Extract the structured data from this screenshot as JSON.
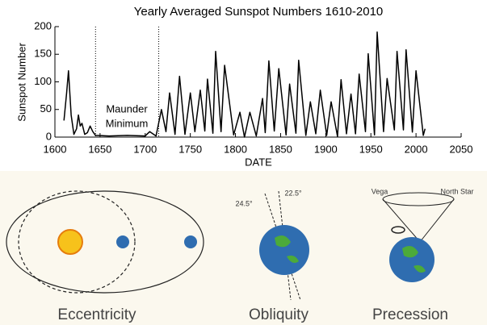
{
  "chart_data": {
    "type": "line",
    "title": "Yearly Averaged Sunspot Numbers 1610-2010",
    "xlabel": "DATE",
    "ylabel": "Sunspot Number",
    "annotation": [
      "Maunder",
      "Minimum"
    ],
    "vlines": [
      1645,
      1715
    ],
    "x": [
      1610,
      1613,
      1615,
      1618,
      1621,
      1624,
      1626,
      1628,
      1630,
      1633,
      1636,
      1639,
      1642,
      1645,
      1660,
      1680,
      1700,
      1705,
      1712,
      1718,
      1723,
      1727,
      1733,
      1738,
      1744,
      1750,
      1755,
      1761,
      1766,
      1769,
      1775,
      1778,
      1784,
      1788,
      1798,
      1805,
      1810,
      1816,
      1823,
      1830,
      1833,
      1837,
      1843,
      1848,
      1856,
      1860,
      1867,
      1870,
      1878,
      1883,
      1889,
      1894,
      1901,
      1906,
      1913,
      1917,
      1923,
      1928,
      1933,
      1937,
      1944,
      1947,
      1954,
      1957,
      1964,
      1968,
      1976,
      1979,
      1986,
      1989,
      1996,
      2000,
      2008,
      2010
    ],
    "values": [
      30,
      80,
      120,
      40,
      5,
      15,
      40,
      20,
      25,
      5,
      8,
      20,
      10,
      3,
      2,
      3,
      2,
      10,
      2,
      50,
      10,
      80,
      5,
      110,
      5,
      80,
      10,
      85,
      11,
      105,
      7,
      155,
      10,
      130,
      4,
      45,
      0,
      45,
      2,
      70,
      8,
      138,
      11,
      124,
      4,
      96,
      7,
      139,
      3,
      64,
      6,
      85,
      3,
      64,
      1,
      104,
      6,
      78,
      6,
      114,
      10,
      151,
      4,
      190,
      10,
      106,
      13,
      155,
      13,
      158,
      9,
      120,
      3,
      15
    ],
    "color": "#000000",
    "xlim": [
      1600,
      2050
    ],
    "xticks": [
      1600,
      1650,
      1700,
      1750,
      1800,
      1850,
      1900,
      1950,
      2000,
      2050
    ],
    "ylim": [
      0,
      200
    ],
    "yticks": [
      0,
      50,
      100,
      150,
      200
    ],
    "grid": false
  },
  "diagram": {
    "labels": [
      "Eccentricity",
      "Obliquity",
      "Precession"
    ],
    "angles": [
      "24.5°",
      "22.5°"
    ],
    "stars": [
      "Vega",
      "North Star"
    ]
  }
}
